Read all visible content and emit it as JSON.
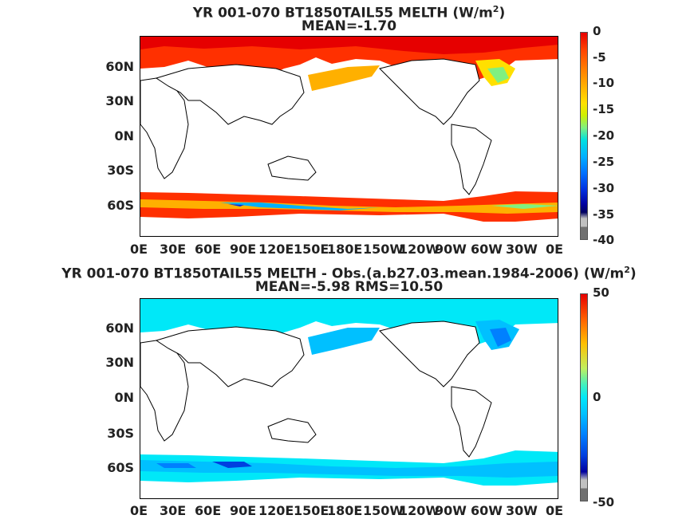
{
  "panel1": {
    "title_line1": "YR 001-070 BT1850TAIL55  MELTH (W/m",
    "title_sup": "2",
    "title_close": ")",
    "title_line2": "MEAN=-1.70",
    "colorbar_ticks": [
      "0",
      "-5",
      "-10",
      "-15",
      "-20",
      "-25",
      "-30",
      "-35",
      "-40"
    ]
  },
  "panel2": {
    "title_line1": "YR 001-070 BT1850TAIL55 MELTH - Obs.(a.b27.03.mean.1984-2006) (W/m",
    "title_sup": "2",
    "title_close": ")",
    "title_line2": "MEAN=-5.98 RMS=10.50",
    "colorbar_ticks": [
      "50",
      "0",
      "-50"
    ]
  },
  "xticks": [
    "0E",
    "30E",
    "60E",
    "90E",
    "120E",
    "150E",
    "180E",
    "150W",
    "120W",
    "90W",
    "60W",
    "30W",
    "0E"
  ],
  "yticks": [
    "60N",
    "30N",
    "0N",
    "30S",
    "60S"
  ],
  "colors": {
    "panel1_scale": [
      "#e60000",
      "#ff4000",
      "#ff8000",
      "#ffb000",
      "#ffe000",
      "#d0f000",
      "#80f080",
      "#00e0e0",
      "#00b0ff",
      "#0070ff",
      "#0030e0",
      "#0000a0",
      "#000060",
      "#c0c0c0",
      "#707070"
    ],
    "panel2_scale": [
      "#e60000",
      "#ff6000",
      "#ffc000",
      "#c0f060",
      "#40f0c0",
      "#00e8f8",
      "#00c0ff",
      "#0080ff",
      "#0040e0",
      "#0000a0",
      "#c0c0c0",
      "#707070"
    ]
  }
}
